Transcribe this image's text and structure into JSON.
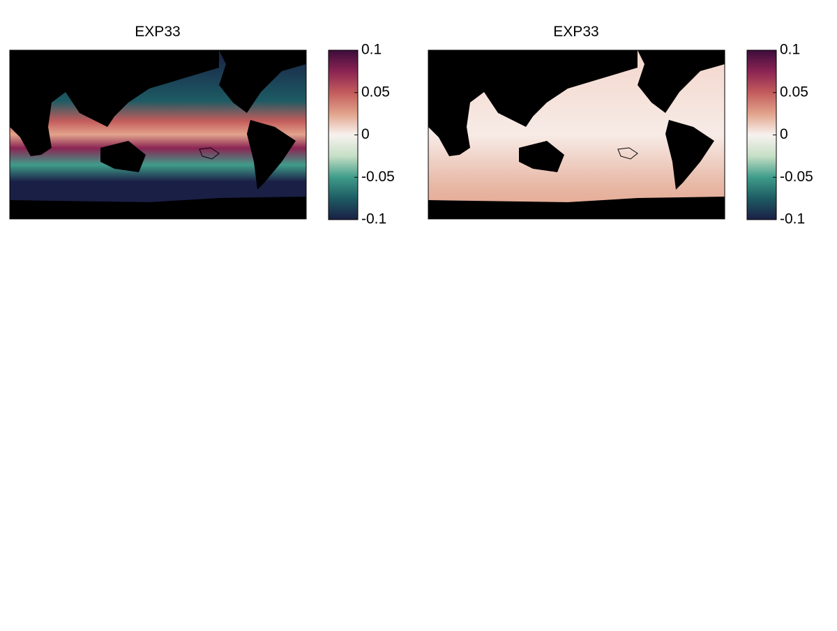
{
  "panels": [
    {
      "title": "EXP33",
      "colorbar": {
        "lim": [
          -0.1,
          0.1
        ],
        "ticks": [
          0.1,
          0.05,
          0,
          -0.05,
          -0.1
        ],
        "colors": [
          "#1a1f45",
          "#1d5b63",
          "#3f9c8a",
          "#c6dfc5",
          "#f7f2ef",
          "#e2a38b",
          "#c35c5c",
          "#8b2453",
          "#3d0c3b"
        ]
      }
    },
    {
      "title": "EXP33",
      "colorbar": {
        "lim": [
          -0.1,
          0.1
        ],
        "ticks": [
          0.1,
          0.05,
          0,
          -0.05,
          -0.1
        ],
        "colors": [
          "#1a1f45",
          "#1d5b63",
          "#3f9c8a",
          "#c6dfc5",
          "#f7f2ef",
          "#e2a38b",
          "#c35c5c",
          "#8b2453",
          "#3d0c3b"
        ]
      }
    }
  ]
}
